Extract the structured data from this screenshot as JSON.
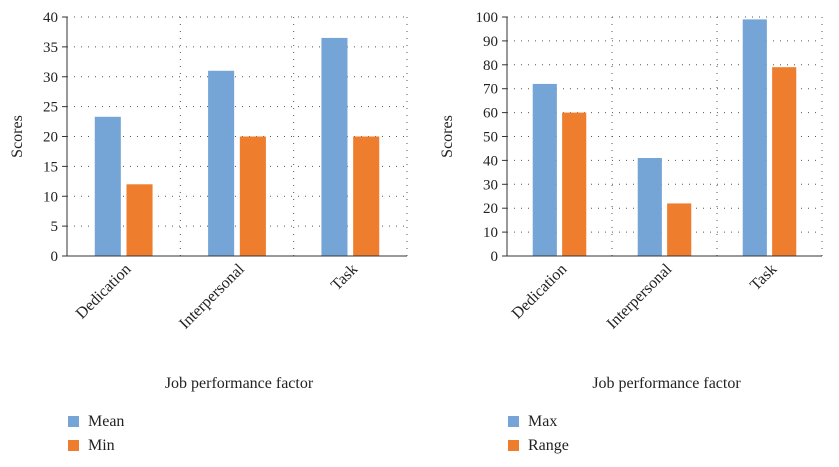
{
  "chart_data": [
    {
      "type": "bar",
      "categories": [
        "Dedication",
        "Interpersonal",
        "Task"
      ],
      "series": [
        {
          "name": "Mean",
          "values": [
            23.3,
            31.0,
            36.5
          ],
          "color": "#75a5d6"
        },
        {
          "name": "Min",
          "values": [
            12,
            20,
            20
          ],
          "color": "#ee7d2e"
        }
      ],
      "title": "",
      "xlabel": "Job performance factor",
      "ylabel": "Scores",
      "ylim": [
        0,
        40
      ],
      "yticks": [
        0,
        5,
        10,
        15,
        20,
        25,
        30,
        35,
        40
      ],
      "grid": true,
      "legend": "bottom-left"
    },
    {
      "type": "bar",
      "categories": [
        "Dedication",
        "Interpersonal",
        "Task"
      ],
      "series": [
        {
          "name": "Max",
          "values": [
            72,
            41,
            99
          ],
          "color": "#75a5d6"
        },
        {
          "name": "Range",
          "values": [
            60,
            22,
            79
          ],
          "color": "#ee7d2e"
        }
      ],
      "title": "",
      "xlabel": "Job performance factor",
      "ylabel": "Scores",
      "ylim": [
        0,
        100
      ],
      "yticks": [
        0,
        10,
        20,
        30,
        40,
        50,
        60,
        70,
        80,
        90,
        100
      ],
      "grid": true,
      "legend": "bottom-left"
    }
  ]
}
